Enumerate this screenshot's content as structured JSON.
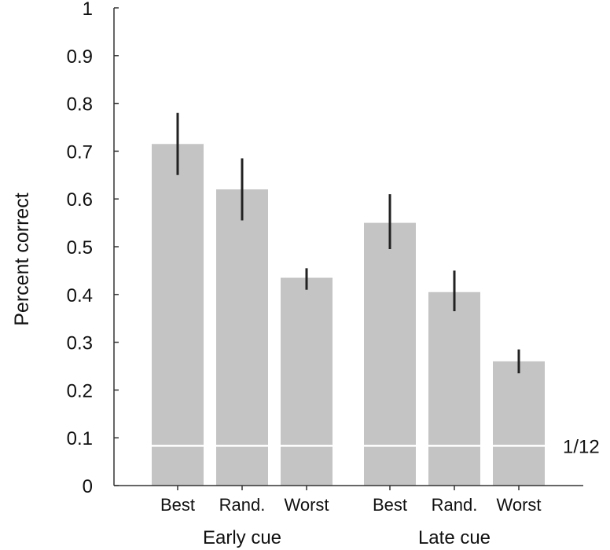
{
  "chart_data": {
    "type": "bar",
    "ylabel": "Percent correct",
    "xlabel": "",
    "ylim": [
      0,
      1
    ],
    "yticks": [
      "0",
      "0.1",
      "0.2",
      "0.3",
      "0.4",
      "0.5",
      "0.6",
      "0.7",
      "0.8",
      "0.9",
      "1"
    ],
    "groups": [
      {
        "label": "Early cue",
        "bars": [
          {
            "category": "Best",
            "value": 0.715,
            "err_low": 0.65,
            "err_high": 0.78
          },
          {
            "category": "Rand.",
            "value": 0.62,
            "err_low": 0.555,
            "err_high": 0.685
          },
          {
            "category": "Worst",
            "value": 0.435,
            "err_low": 0.41,
            "err_high": 0.455
          }
        ]
      },
      {
        "label": "Late cue",
        "bars": [
          {
            "category": "Best",
            "value": 0.55,
            "err_low": 0.495,
            "err_high": 0.61
          },
          {
            "category": "Rand.",
            "value": 0.405,
            "err_low": 0.365,
            "err_high": 0.45
          },
          {
            "category": "Worst",
            "value": 0.26,
            "err_low": 0.235,
            "err_high": 0.285
          }
        ]
      }
    ],
    "reference_line": {
      "value": 0.0833,
      "label": "1/12"
    },
    "grid": false,
    "colors": {
      "bar": "#c4c4c4",
      "error": "#222222",
      "axis": "#333333",
      "reference": "#ffffff"
    }
  }
}
